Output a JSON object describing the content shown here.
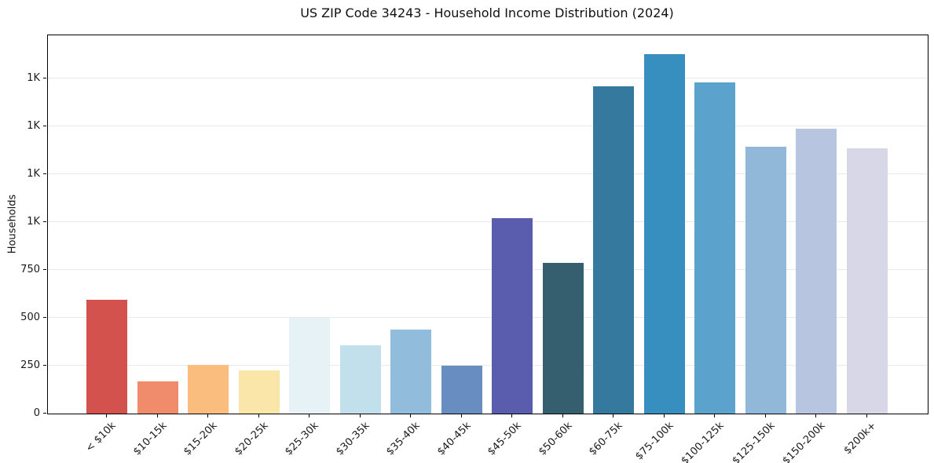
{
  "figure": {
    "title": "US ZIP Code 34243 - Household Income Distribution (2024)"
  },
  "chart_data": {
    "type": "bar",
    "title": "US ZIP Code 34243 - Household Income Distribution (2024)",
    "xlabel": "",
    "ylabel": "Households",
    "categories": [
      "< $10k",
      "$10-15k",
      "$15-20k",
      "$20-25k",
      "$25-30k",
      "$30-35k",
      "$35-40k",
      "$40-45k",
      "$45-50k",
      "$50-60k",
      "$60-75k",
      "$75-100k",
      "$100-125k",
      "$125-150k",
      "$150-200k",
      "$200k+"
    ],
    "values": [
      595,
      170,
      253,
      226,
      500,
      356,
      440,
      248,
      1022,
      785,
      1710,
      1877,
      1730,
      1394,
      1488,
      1386
    ],
    "bar_colors": [
      "#d3524e",
      "#f08b6c",
      "#fabd7e",
      "#fae6a9",
      "#e7f2f7",
      "#c2e0ec",
      "#91bcdc",
      "#688dc1",
      "#5a5cae",
      "#355f6e",
      "#35799f",
      "#378fc0",
      "#5ba3cc",
      "#91b8d8",
      "#b7c5e1",
      "#d8d7e8"
    ],
    "ylim": [
      0,
      1975
    ],
    "yticks": [
      {
        "value": 0,
        "label": "0"
      },
      {
        "value": 250,
        "label": "250"
      },
      {
        "value": 500,
        "label": "500"
      },
      {
        "value": 750,
        "label": "750"
      },
      {
        "value": 1000,
        "label": "1K"
      },
      {
        "value": 1250,
        "label": "1K"
      },
      {
        "value": 1500,
        "label": "1K"
      },
      {
        "value": 1750,
        "label": "1K"
      }
    ],
    "grid": "horizontal-y",
    "gridline_color": "#e9e9ec",
    "axis_color": "#000000",
    "legend_position": "none"
  }
}
